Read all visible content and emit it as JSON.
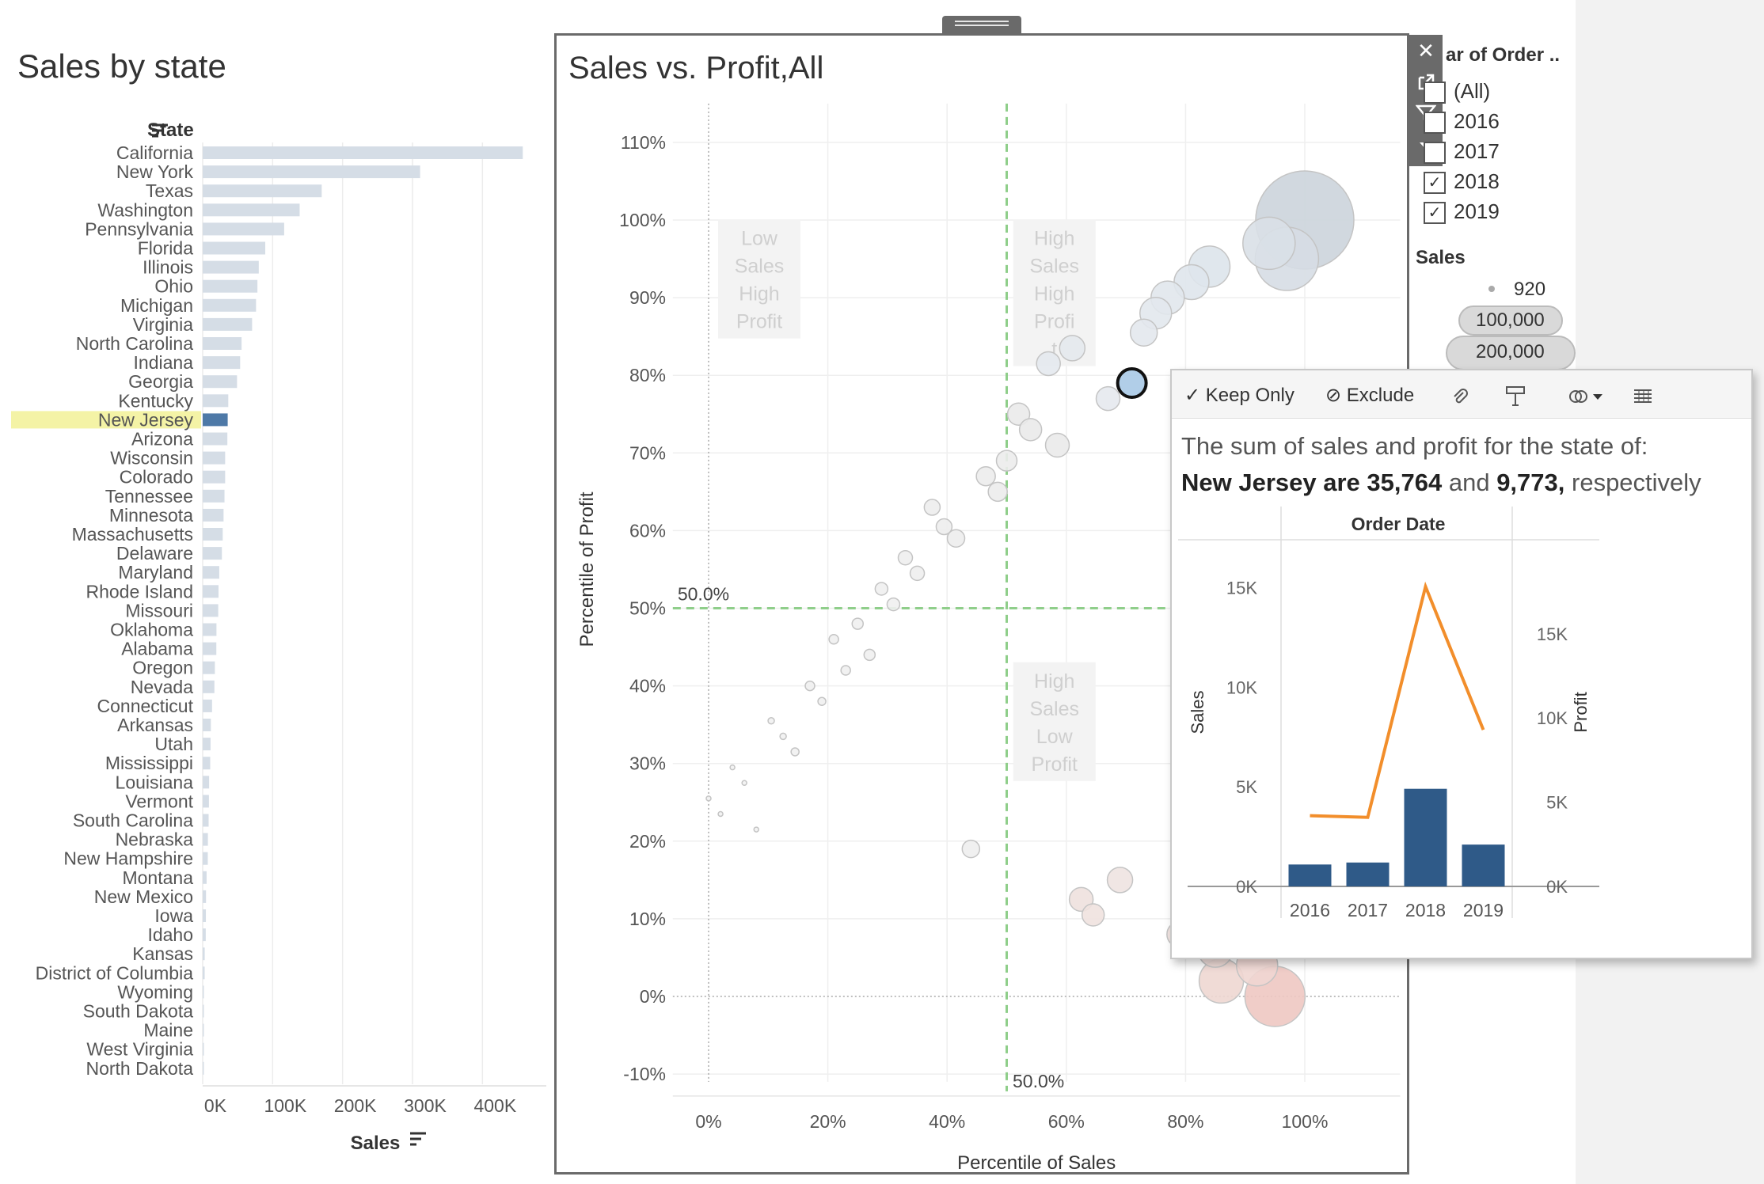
{
  "left_chart": {
    "title": "Sales by state",
    "dimension_label": "State",
    "measure_label": "Sales",
    "highlight_state": "New Jersey",
    "ticks": [
      "0K",
      "100K",
      "200K",
      "300K",
      "400K"
    ],
    "tick_values": [
      0,
      100000,
      200000,
      300000,
      400000
    ],
    "xmax": 480000,
    "states": [
      "California",
      "New York",
      "Texas",
      "Washington",
      "Pennsylvania",
      "Florida",
      "Illinois",
      "Ohio",
      "Michigan",
      "Virginia",
      "North Carolina",
      "Indiana",
      "Georgia",
      "Kentucky",
      "New Jersey",
      "Arizona",
      "Wisconsin",
      "Colorado",
      "Tennessee",
      "Minnesota",
      "Massachusetts",
      "Delaware",
      "Maryland",
      "Rhode Island",
      "Missouri",
      "Oklahoma",
      "Alabama",
      "Oregon",
      "Nevada",
      "Connecticut",
      "Arkansas",
      "Utah",
      "Mississippi",
      "Louisiana",
      "Vermont",
      "South Carolina",
      "Nebraska",
      "New Hampshire",
      "Montana",
      "New Mexico",
      "Iowa",
      "Idaho",
      "Kansas",
      "District of Columbia",
      "Wyoming",
      "South Dakota",
      "Maine",
      "West Virginia",
      "North Dakota"
    ],
    "values": [
      457688,
      310876,
      170188,
      138641,
      116512,
      89474,
      80166,
      78258,
      76270,
      70637,
      55603,
      53555,
      49096,
      36592,
      35764,
      35282,
      32115,
      32108,
      31173,
      29863,
      28634,
      27451,
      23706,
      22628,
      22205,
      19683,
      19511,
      17431,
      16729,
      13385,
      11678,
      11220,
      10771,
      9217,
      8929,
      8482,
      7465,
      7293,
      5589,
      4784,
      4580,
      4382,
      2914,
      2865,
      1603,
      1316,
      1271,
      1210,
      920
    ],
    "colors": {
      "bar": "#d5dde6",
      "highlight_bar": "#4e79a7",
      "highlight_row": "#f4f3a6"
    }
  },
  "scatter": {
    "title": "Sales vs. Profit,All",
    "xlabel": "Percentile of Sales",
    "ylabel": "Percentile of Profit",
    "x_ticks": [
      "0%",
      "20%",
      "40%",
      "60%",
      "80%",
      "100%"
    ],
    "x_tick_values": [
      0,
      20,
      40,
      60,
      80,
      100
    ],
    "y_ticks": [
      "110%",
      "100%",
      "90%",
      "80%",
      "70%",
      "60%",
      "50%",
      "40%",
      "30%",
      "20%",
      "10%",
      "0%",
      "-10%"
    ],
    "y_tick_values": [
      110,
      100,
      90,
      80,
      70,
      60,
      50,
      40,
      30,
      20,
      10,
      0,
      -10
    ],
    "xlim": [
      -6,
      116
    ],
    "ylim": [
      -11,
      115
    ],
    "ref_line_label_x": "50.0%",
    "ref_line_label_y": "50.0%",
    "quadrant_labels": [
      {
        "lines": [
          "Low",
          "Sales",
          "High",
          "Profit"
        ],
        "x": 8.5,
        "y": 98
      },
      {
        "lines": [
          "High",
          "Sales",
          "High",
          "Profi",
          "t"
        ],
        "x": 58,
        "y": 98
      },
      {
        "lines": [
          "High",
          "Sales",
          "Low",
          "Profit"
        ],
        "x": 58,
        "y": 41
      }
    ],
    "points": [
      {
        "x": 100,
        "y": 100,
        "r": 62,
        "c": "#ccd4dc"
      },
      {
        "x": 97,
        "y": 95,
        "r": 40,
        "c": "#d6dde4"
      },
      {
        "x": 94,
        "y": 97,
        "r": 33,
        "c": "#d9e0e7"
      },
      {
        "x": 84,
        "y": 94,
        "r": 26,
        "c": "#dde4eb"
      },
      {
        "x": 81,
        "y": 92,
        "r": 22,
        "c": "#dfe6ec"
      },
      {
        "x": 77,
        "y": 90,
        "r": 21,
        "c": "#e1e7ec"
      },
      {
        "x": 75,
        "y": 88,
        "r": 20,
        "c": "#e2e8ed"
      },
      {
        "x": 73,
        "y": 85.5,
        "r": 17,
        "c": "#e3e8ed"
      },
      {
        "x": 61,
        "y": 83.5,
        "r": 16,
        "c": "#e4e9ed"
      },
      {
        "x": 57,
        "y": 81.5,
        "r": 15,
        "c": "#e4e9ee"
      },
      {
        "x": 67,
        "y": 77,
        "r": 15,
        "c": "#e5e9ee"
      },
      {
        "x": 71,
        "y": 79,
        "r": 18,
        "c": "#a9c9e6",
        "stroke": "#111",
        "sw": 4
      },
      {
        "x": 52,
        "y": 75,
        "r": 14,
        "c": "#eaeaea"
      },
      {
        "x": 54,
        "y": 73,
        "r": 14,
        "c": "#eaeaea"
      },
      {
        "x": 58.5,
        "y": 71,
        "r": 15,
        "c": "#eaeaea"
      },
      {
        "x": 50,
        "y": 69,
        "r": 13,
        "c": "#ececec"
      },
      {
        "x": 46.5,
        "y": 67,
        "r": 12,
        "c": "#ececec"
      },
      {
        "x": 48.5,
        "y": 65,
        "r": 12,
        "c": "#ececec"
      },
      {
        "x": 37.5,
        "y": 63,
        "r": 10,
        "c": "#ededed"
      },
      {
        "x": 39.5,
        "y": 60.5,
        "r": 10,
        "c": "#ededed"
      },
      {
        "x": 41.5,
        "y": 59,
        "r": 11,
        "c": "#ededed"
      },
      {
        "x": 33,
        "y": 56.5,
        "r": 9,
        "c": "#eeeeee"
      },
      {
        "x": 35,
        "y": 54.5,
        "r": 9,
        "c": "#eeeeee"
      },
      {
        "x": 29,
        "y": 52.5,
        "r": 8,
        "c": "#efefef"
      },
      {
        "x": 31,
        "y": 50.5,
        "r": 8,
        "c": "#efefef"
      },
      {
        "x": 25,
        "y": 48,
        "r": 7,
        "c": "#efefef"
      },
      {
        "x": 21,
        "y": 46,
        "r": 6,
        "c": "#f0f0f0"
      },
      {
        "x": 27,
        "y": 44,
        "r": 7,
        "c": "#efefef"
      },
      {
        "x": 23,
        "y": 42,
        "r": 6,
        "c": "#f0f0f0"
      },
      {
        "x": 17,
        "y": 40,
        "r": 6,
        "c": "#f0f0f0"
      },
      {
        "x": 19,
        "y": 38,
        "r": 5,
        "c": "#f0f0f0"
      },
      {
        "x": 10.5,
        "y": 35.5,
        "r": 4,
        "c": "#f1f1f1"
      },
      {
        "x": 12.5,
        "y": 33.5,
        "r": 4,
        "c": "#f1f1f1"
      },
      {
        "x": 14.5,
        "y": 31.5,
        "r": 5,
        "c": "#f1f1f1"
      },
      {
        "x": 4,
        "y": 29.5,
        "r": 3,
        "c": "#f2f2f2"
      },
      {
        "x": 6,
        "y": 27.5,
        "r": 3,
        "c": "#f2f2f2"
      },
      {
        "x": 0,
        "y": 25.5,
        "r": 3,
        "c": "#f2f2f2"
      },
      {
        "x": 2,
        "y": 23.5,
        "r": 3,
        "c": "#f2f2f2"
      },
      {
        "x": 8,
        "y": 21.5,
        "r": 3,
        "c": "#f2f2f2"
      },
      {
        "x": 44,
        "y": 19,
        "r": 11,
        "c": "#eeeeee"
      },
      {
        "x": 69,
        "y": 15,
        "r": 16,
        "c": "#eee3e1"
      },
      {
        "x": 62.5,
        "y": 12.5,
        "r": 15,
        "c": "#eee1de"
      },
      {
        "x": 64.5,
        "y": 10.5,
        "r": 14,
        "c": "#efe2df"
      },
      {
        "x": 79,
        "y": 8,
        "r": 16,
        "c": "#eee0dd"
      },
      {
        "x": 85,
        "y": 6,
        "r": 22,
        "c": "#eedcd8"
      },
      {
        "x": 92,
        "y": 4,
        "r": 26,
        "c": "#efd6d2"
      },
      {
        "x": 86,
        "y": 2,
        "r": 28,
        "c": "#eed7d2"
      },
      {
        "x": 95,
        "y": 0,
        "r": 38,
        "c": "#eec8c2"
      }
    ]
  },
  "year_filter": {
    "title": "ar of Order ..",
    "items": [
      {
        "label": "(All)",
        "checked": false
      },
      {
        "label": "2016",
        "checked": false
      },
      {
        "label": "2017",
        "checked": false
      },
      {
        "label": "2018",
        "checked": true
      },
      {
        "label": "2019",
        "checked": true
      }
    ]
  },
  "sales_legend": {
    "title": "Sales",
    "items": [
      "920",
      "100,000",
      "200,000"
    ]
  },
  "tooltip": {
    "keep_only": "Keep Only",
    "exclude": "Exclude",
    "line1": "The sum of sales and profit for the state of:",
    "state": "New Jersey",
    "are": " are ",
    "sales_value": "35,764",
    "and": " and ",
    "profit_value": "9,773,",
    "respectively": " respectively",
    "chart": {
      "type": "bar",
      "title": "Order Date",
      "categories": [
        "2016",
        "2017",
        "2018",
        "2019"
      ],
      "series": [
        {
          "name": "Sales",
          "type": "bar",
          "values": [
            1100,
            1200,
            4900,
            2100
          ]
        },
        {
          "name": "Profit",
          "type": "line",
          "values": [
            4200,
            4100,
            17800,
            9300
          ]
        }
      ],
      "left_axis_label": "Sales",
      "right_axis_label": "Profit",
      "left_ticks": [
        "0K",
        "5K",
        "10K",
        "15K"
      ],
      "left_tick_values": [
        0,
        5000,
        10000,
        15000
      ],
      "left_max": 14900,
      "right_ticks": [
        "0K",
        "5K",
        "10K",
        "15K"
      ],
      "right_tick_values": [
        0,
        5000,
        10000,
        15000
      ],
      "right_max": 19500,
      "colors": {
        "bar": "#2f5a88",
        "line": "#f28e2b"
      }
    }
  }
}
